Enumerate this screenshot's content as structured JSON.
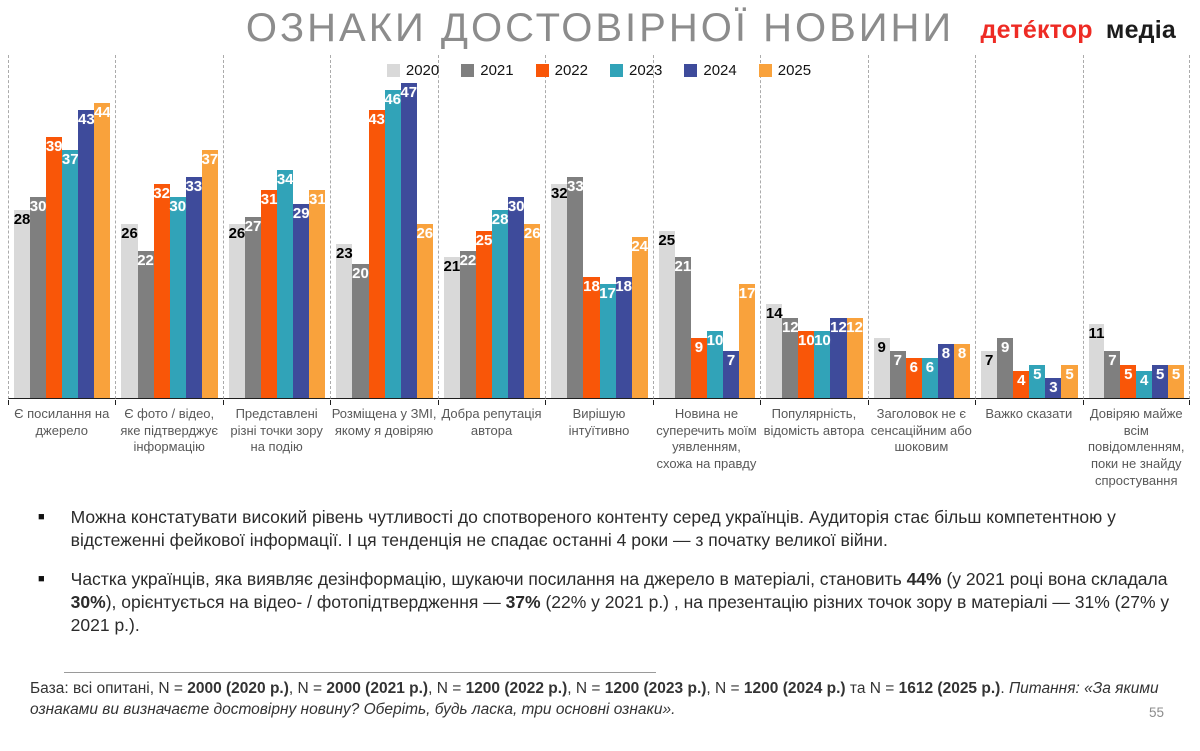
{
  "header": {
    "title": "ОЗНАКИ ДОСТОВІРНОЇ НОВИНИ",
    "logo": {
      "part1": "детéктор",
      "part2": "медіа"
    }
  },
  "chart_data": {
    "type": "bar",
    "title": "ОЗНАКИ ДОСТОВІРНОЇ НОВИНИ",
    "unit": "percent",
    "ylim": [
      0,
      50
    ],
    "legend_position": "top-center",
    "grid": "dashed vertical separators between category groups",
    "value_labels": "inside-top",
    "categories": [
      "Є посилання на джерело",
      "Є фото / відео, яке підтверджує інформацію",
      "Представлені різні точки зору на подію",
      "Розміщена у ЗМІ, якому я довіряю",
      "Добра репутація автора",
      "Вирішую інтуїтивно",
      "Новина не суперечить моїм уявленням, схожа на правду",
      "Популярність, відомість автора",
      "Заголовок не є сенсаційним або шоковим",
      "Важко сказати",
      "Довіряю майже всім повідомленням, поки не знайду спростування"
    ],
    "series": [
      {
        "name": "2020",
        "color": "#d9d9d9",
        "label_color": "#000000",
        "values": [
          28,
          26,
          26,
          23,
          21,
          32,
          25,
          14,
          9,
          7,
          11
        ]
      },
      {
        "name": "2021",
        "color": "#7f7f7f",
        "label_color": "#ffffff",
        "values": [
          30,
          22,
          27,
          20,
          22,
          33,
          21,
          12,
          7,
          9,
          7
        ]
      },
      {
        "name": "2022",
        "color": "#f95608",
        "label_color": "#ffffff",
        "values": [
          39,
          32,
          31,
          43,
          25,
          18,
          9,
          10,
          6,
          4,
          5
        ]
      },
      {
        "name": "2023",
        "color": "#31a3b8",
        "label_color": "#ffffff",
        "values": [
          37,
          30,
          34,
          46,
          28,
          17,
          10,
          10,
          6,
          5,
          4
        ]
      },
      {
        "name": "2024",
        "color": "#3e4b9b",
        "label_color": "#ffffff",
        "values": [
          43,
          33,
          29,
          47,
          30,
          18,
          7,
          12,
          8,
          3,
          5
        ]
      },
      {
        "name": "2025",
        "color": "#f9a23c",
        "label_color": "#ffffff",
        "values": [
          44,
          37,
          31,
          26,
          26,
          24,
          17,
          12,
          8,
          5,
          5
        ]
      }
    ]
  },
  "bullets": [
    {
      "segments": [
        {
          "text": "Можна констатувати високий рівень  чутливості до спотвореного контенту серед українців. Аудиторія стає більш компетентною у відстеженні фейкової інформації. І ця тенденція не спадає останні 4 роки — з початку великої війни."
        }
      ]
    },
    {
      "segments": [
        {
          "text": "Частка українців, яка виявляє дезінформацію, шукаючи посилання на джерело в матеріалі, становить "
        },
        {
          "text": "44%",
          "bold": true
        },
        {
          "text": " (у 2021 році вона складала "
        },
        {
          "text": "30%",
          "bold": true
        },
        {
          "text": "), орієнтується на відео- / фотопідтвердження — "
        },
        {
          "text": "37%",
          "bold": true
        },
        {
          "text": " (22% у 2021 р.) , на презентацію різних точок зору в матеріалі — 31% (27% у 2021 р.)."
        }
      ]
    }
  ],
  "footer": {
    "segments": [
      {
        "text": "База: всі опитані, N = "
      },
      {
        "text": "2000 (2020 р.)",
        "bold": true
      },
      {
        "text": ", N = "
      },
      {
        "text": "2000 (2021 р.)",
        "bold": true
      },
      {
        "text": ", N = "
      },
      {
        "text": "1200 (2022 р.)",
        "bold": true
      },
      {
        "text": ", N = "
      },
      {
        "text": "1200 (2023 р.)",
        "bold": true
      },
      {
        "text": ", N = "
      },
      {
        "text": "1200 (2024 р.)",
        "bold": true
      },
      {
        "text": " та N = "
      },
      {
        "text": "1612 (2025 р.)",
        "bold": true
      },
      {
        "text": ". "
      },
      {
        "text": "Питання: «За якими ознаками ви визначаєте достовірну новину? Оберіть, будь ласка, три основні ознаки».",
        "italic": true
      }
    ]
  },
  "page_number": "55"
}
